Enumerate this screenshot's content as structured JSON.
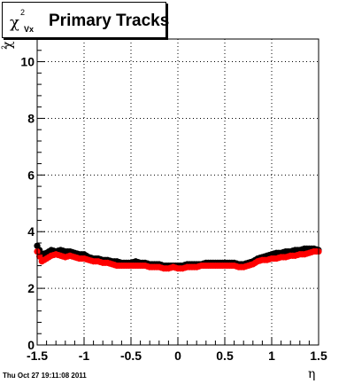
{
  "chart_data": {
    "type": "scatter",
    "title": {
      "symbol": "χ",
      "superscript": "2",
      "subscript": "Vx",
      "text": "Primary Tracks"
    },
    "xlabel": "η",
    "ylabel": {
      "symbol": "χ",
      "superscript": "2"
    },
    "xlim": [
      -1.5,
      1.5
    ],
    "ylim": [
      0,
      10.8
    ],
    "x_ticks": [
      "-1.5",
      "-1",
      "-0.5",
      "0",
      "0.5",
      "1",
      "1.5"
    ],
    "y_ticks": [
      "0",
      "2",
      "4",
      "6",
      "8",
      "10"
    ],
    "grid": true,
    "series": [
      {
        "color": "#000000",
        "x": [
          -1.5,
          -1.45,
          -1.4,
          -1.35,
          -1.3,
          -1.25,
          -1.2,
          -1.15,
          -1.1,
          -1.05,
          -1.0,
          -0.95,
          -0.9,
          -0.85,
          -0.8,
          -0.75,
          -0.7,
          -0.65,
          -0.6,
          -0.55,
          -0.5,
          -0.45,
          -0.4,
          -0.35,
          -0.3,
          -0.25,
          -0.2,
          -0.15,
          -0.1,
          -0.05,
          0.0,
          0.05,
          0.1,
          0.15,
          0.2,
          0.25,
          0.3,
          0.35,
          0.4,
          0.45,
          0.5,
          0.55,
          0.6,
          0.65,
          0.7,
          0.75,
          0.8,
          0.85,
          0.9,
          0.95,
          1.0,
          1.05,
          1.1,
          1.15,
          1.2,
          1.25,
          1.3,
          1.35,
          1.4,
          1.45,
          1.5
        ],
        "values": [
          3.5,
          3.2,
          3.25,
          3.35,
          3.3,
          3.35,
          3.3,
          3.3,
          3.25,
          3.2,
          3.2,
          3.1,
          3.05,
          3.05,
          3.0,
          3.0,
          2.95,
          2.95,
          2.9,
          2.9,
          2.9,
          2.95,
          2.9,
          2.9,
          2.85,
          2.85,
          2.85,
          2.8,
          2.8,
          2.8,
          2.8,
          2.8,
          2.85,
          2.85,
          2.85,
          2.85,
          2.9,
          2.9,
          2.9,
          2.9,
          2.9,
          2.9,
          2.9,
          2.85,
          2.85,
          2.9,
          2.95,
          3.05,
          3.1,
          3.15,
          3.2,
          3.25,
          3.25,
          3.3,
          3.3,
          3.35,
          3.35,
          3.4,
          3.4,
          3.4,
          3.35
        ]
      },
      {
        "color": "#ff0000",
        "x": [
          -1.5,
          -1.45,
          -1.4,
          -1.35,
          -1.3,
          -1.25,
          -1.2,
          -1.15,
          -1.1,
          -1.05,
          -1.0,
          -0.95,
          -0.9,
          -0.85,
          -0.8,
          -0.75,
          -0.7,
          -0.65,
          -0.6,
          -0.55,
          -0.5,
          -0.45,
          -0.4,
          -0.35,
          -0.3,
          -0.25,
          -0.2,
          -0.15,
          -0.1,
          -0.05,
          0.0,
          0.05,
          0.1,
          0.15,
          0.2,
          0.25,
          0.3,
          0.35,
          0.4,
          0.45,
          0.5,
          0.55,
          0.6,
          0.65,
          0.7,
          0.75,
          0.8,
          0.85,
          0.9,
          0.95,
          1.0,
          1.05,
          1.1,
          1.15,
          1.2,
          1.25,
          1.3,
          1.35,
          1.4,
          1.45,
          1.5
        ],
        "values": [
          3.3,
          2.95,
          3.05,
          3.15,
          3.2,
          3.15,
          3.1,
          3.15,
          3.1,
          3.05,
          3.05,
          3.0,
          2.95,
          2.95,
          2.9,
          2.9,
          2.85,
          2.8,
          2.8,
          2.8,
          2.8,
          2.8,
          2.8,
          2.8,
          2.75,
          2.75,
          2.75,
          2.7,
          2.7,
          2.75,
          2.7,
          2.7,
          2.75,
          2.75,
          2.75,
          2.8,
          2.8,
          2.8,
          2.8,
          2.8,
          2.8,
          2.8,
          2.8,
          2.75,
          2.75,
          2.8,
          2.85,
          2.95,
          3.0,
          3.0,
          3.05,
          3.05,
          3.1,
          3.1,
          3.15,
          3.15,
          3.2,
          3.2,
          3.25,
          3.3,
          3.3
        ]
      }
    ]
  },
  "footer": {
    "timestamp": "Thu Oct 27 19:11:08 2011"
  }
}
